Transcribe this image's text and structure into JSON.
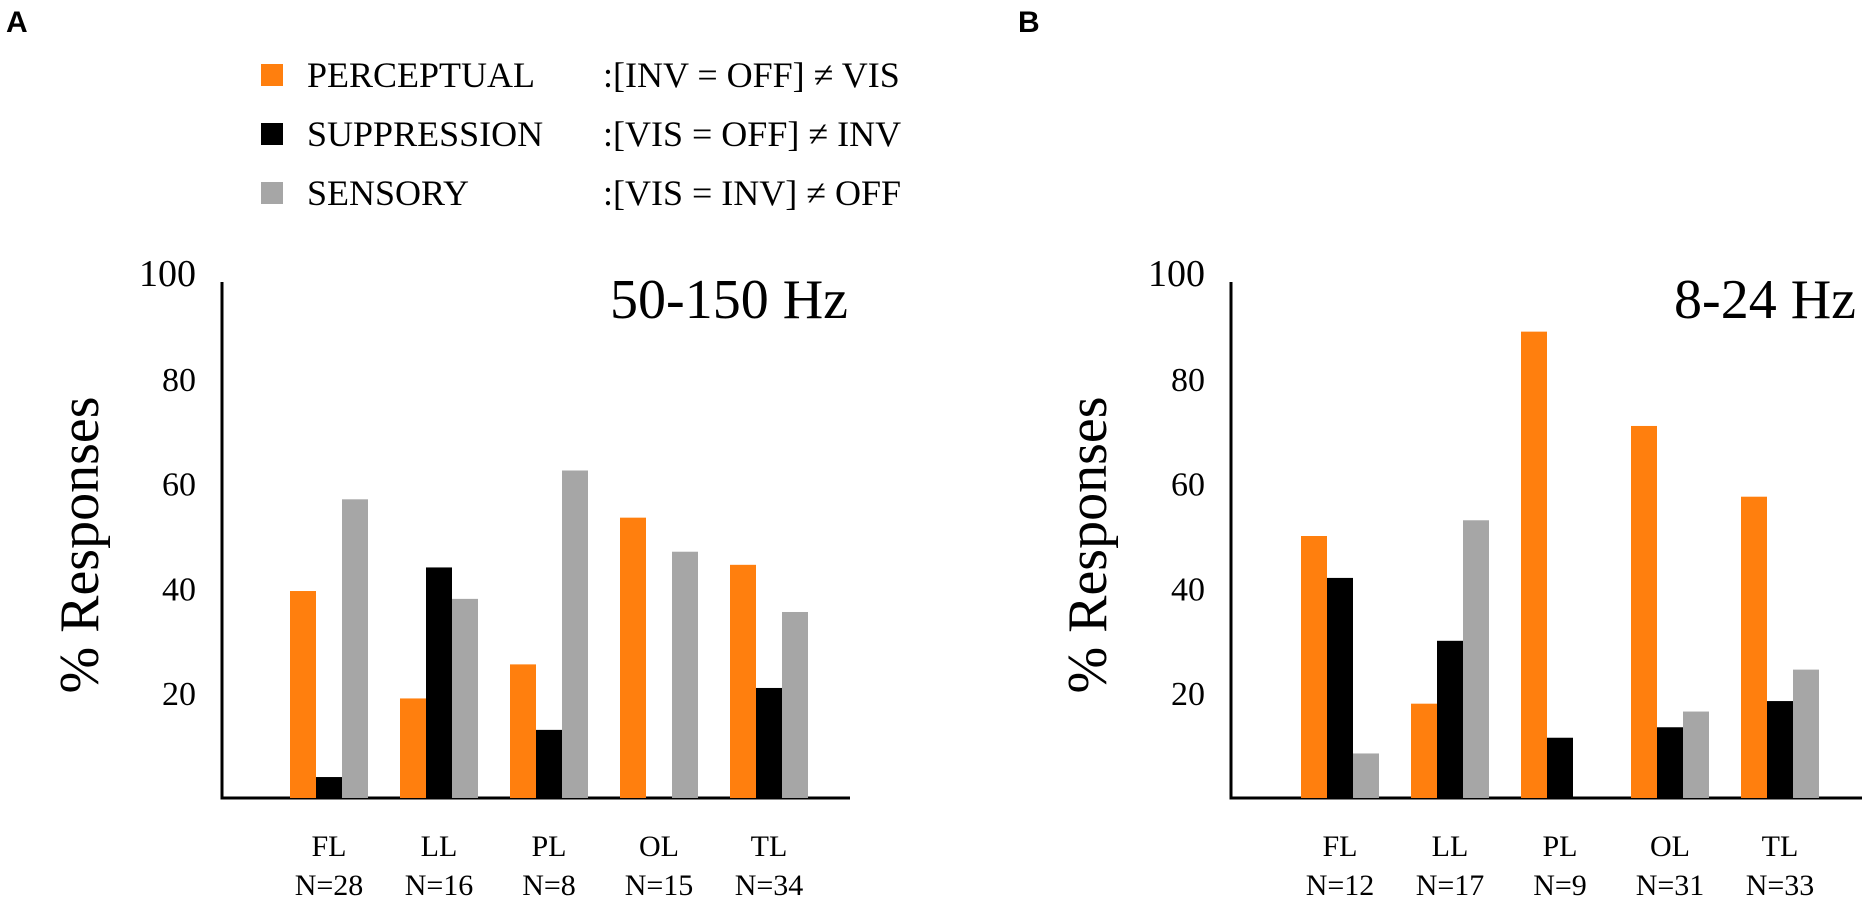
{
  "colors": {
    "perceptual": "#ff7f0e",
    "suppression": "#000000",
    "sensory": "#a6a6a6",
    "axis": "#000000"
  },
  "legend": {
    "items": [
      {
        "key": "perceptual",
        "name": "PERCEPTUAL",
        "rule": ":[INV = OFF] ≠ VIS"
      },
      {
        "key": "suppression",
        "name": "SUPPRESSION",
        "rule": ":[VIS = OFF] ≠ INV"
      },
      {
        "key": "sensory",
        "name": "SENSORY",
        "rule": ":[VIS = INV] ≠ OFF"
      }
    ]
  },
  "chart_data": [
    {
      "type": "bar",
      "panel_label": "A",
      "title": "50-150 Hz",
      "ylabel": "% Responses",
      "xlabel": "",
      "ylim": [
        0,
        100
      ],
      "yticks": [
        20,
        40,
        60,
        80,
        100
      ],
      "categories": [
        "FL",
        "LL",
        "PL",
        "OL",
        "TL"
      ],
      "category_counts": [
        "N=28",
        "N=16",
        "N=8",
        "N=15",
        "N=34"
      ],
      "series": [
        {
          "name": "PERCEPTUAL",
          "key": "perceptual",
          "values": [
            39.5,
            19,
            25.5,
            53.5,
            44.5
          ]
        },
        {
          "name": "SUPPRESSION",
          "key": "suppression",
          "values": [
            4,
            44,
            13,
            0,
            21
          ]
        },
        {
          "name": "SENSORY",
          "key": "sensory",
          "values": [
            57,
            38,
            62.5,
            47,
            35.5
          ]
        }
      ]
    },
    {
      "type": "bar",
      "panel_label": "B",
      "title": "8-24 Hz",
      "ylabel": "% Responses",
      "xlabel": "",
      "ylim": [
        0,
        100
      ],
      "yticks": [
        20,
        40,
        60,
        80,
        100
      ],
      "categories": [
        "FL",
        "LL",
        "PL",
        "OL",
        "TL"
      ],
      "category_counts": [
        "N=12",
        "N=17",
        "N=9",
        "N=31",
        "N=33"
      ],
      "series": [
        {
          "name": "PERCEPTUAL",
          "key": "perceptual",
          "values": [
            50,
            18,
            89,
            71,
            57.5
          ]
        },
        {
          "name": "SUPPRESSION",
          "key": "suppression",
          "values": [
            42,
            30,
            11.5,
            13.5,
            18.5
          ]
        },
        {
          "name": "SENSORY",
          "key": "sensory",
          "values": [
            8.5,
            53,
            0,
            16.5,
            24.5
          ]
        }
      ]
    }
  ]
}
